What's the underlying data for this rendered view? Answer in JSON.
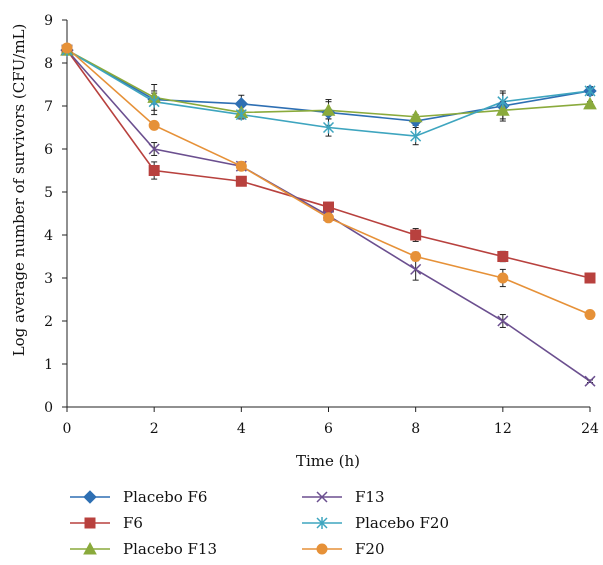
{
  "chart_data": {
    "type": "line",
    "xlabel": "Time (h)",
    "ylabel": "Log average number of survivors (CFU/mL)",
    "categories": [
      "0",
      "2",
      "4",
      "6",
      "8",
      "12",
      "24"
    ],
    "ylim": [
      0,
      9
    ],
    "yticks": [
      "0",
      "1",
      "2",
      "3",
      "4",
      "5",
      "6",
      "7",
      "8",
      "9"
    ],
    "grid": false,
    "legend_position": "bottom",
    "series": [
      {
        "name": "Placebo F6",
        "marker": "diamond",
        "color": "#2e6fb3",
        "values": [
          8.3,
          7.15,
          7.05,
          6.85,
          6.65,
          7.0,
          7.35
        ],
        "errors": [
          0.08,
          0.35,
          0.2,
          0.3,
          0.1,
          0.35,
          0.1
        ]
      },
      {
        "name": "F6",
        "marker": "square",
        "color": "#b8413e",
        "values": [
          8.3,
          5.5,
          5.25,
          4.65,
          4.0,
          3.5,
          3.0
        ],
        "errors": [
          0.08,
          0.2,
          0.05,
          0.05,
          0.15,
          0.12,
          0.05
        ]
      },
      {
        "name": "Placebo F13",
        "marker": "triangle",
        "color": "#8aaa3c",
        "values": [
          8.3,
          7.2,
          6.85,
          6.9,
          6.75,
          6.9,
          7.05
        ],
        "errors": [
          0.08,
          0.15,
          0.15,
          0.2,
          0.05,
          0.2,
          0.05
        ]
      },
      {
        "name": "F13",
        "marker": "x",
        "color": "#6b4f8f",
        "values": [
          8.3,
          6.0,
          5.6,
          4.45,
          3.2,
          2.0,
          0.6
        ],
        "errors": [
          0.08,
          0.15,
          0.1,
          0.05,
          0.25,
          0.15,
          0.03
        ]
      },
      {
        "name": "Placebo F20",
        "marker": "star",
        "color": "#3ea5bf",
        "values": [
          8.3,
          7.1,
          6.8,
          6.5,
          6.3,
          7.1,
          7.35
        ],
        "errors": [
          0.08,
          0.2,
          0.1,
          0.2,
          0.2,
          0.2,
          0.05
        ]
      },
      {
        "name": "F20",
        "marker": "circle",
        "color": "#e69138",
        "values": [
          8.35,
          6.55,
          5.6,
          4.4,
          3.5,
          3.0,
          2.15
        ],
        "errors": [
          0.08,
          0.05,
          0.1,
          0.05,
          0.1,
          0.2,
          0.05
        ]
      }
    ]
  }
}
